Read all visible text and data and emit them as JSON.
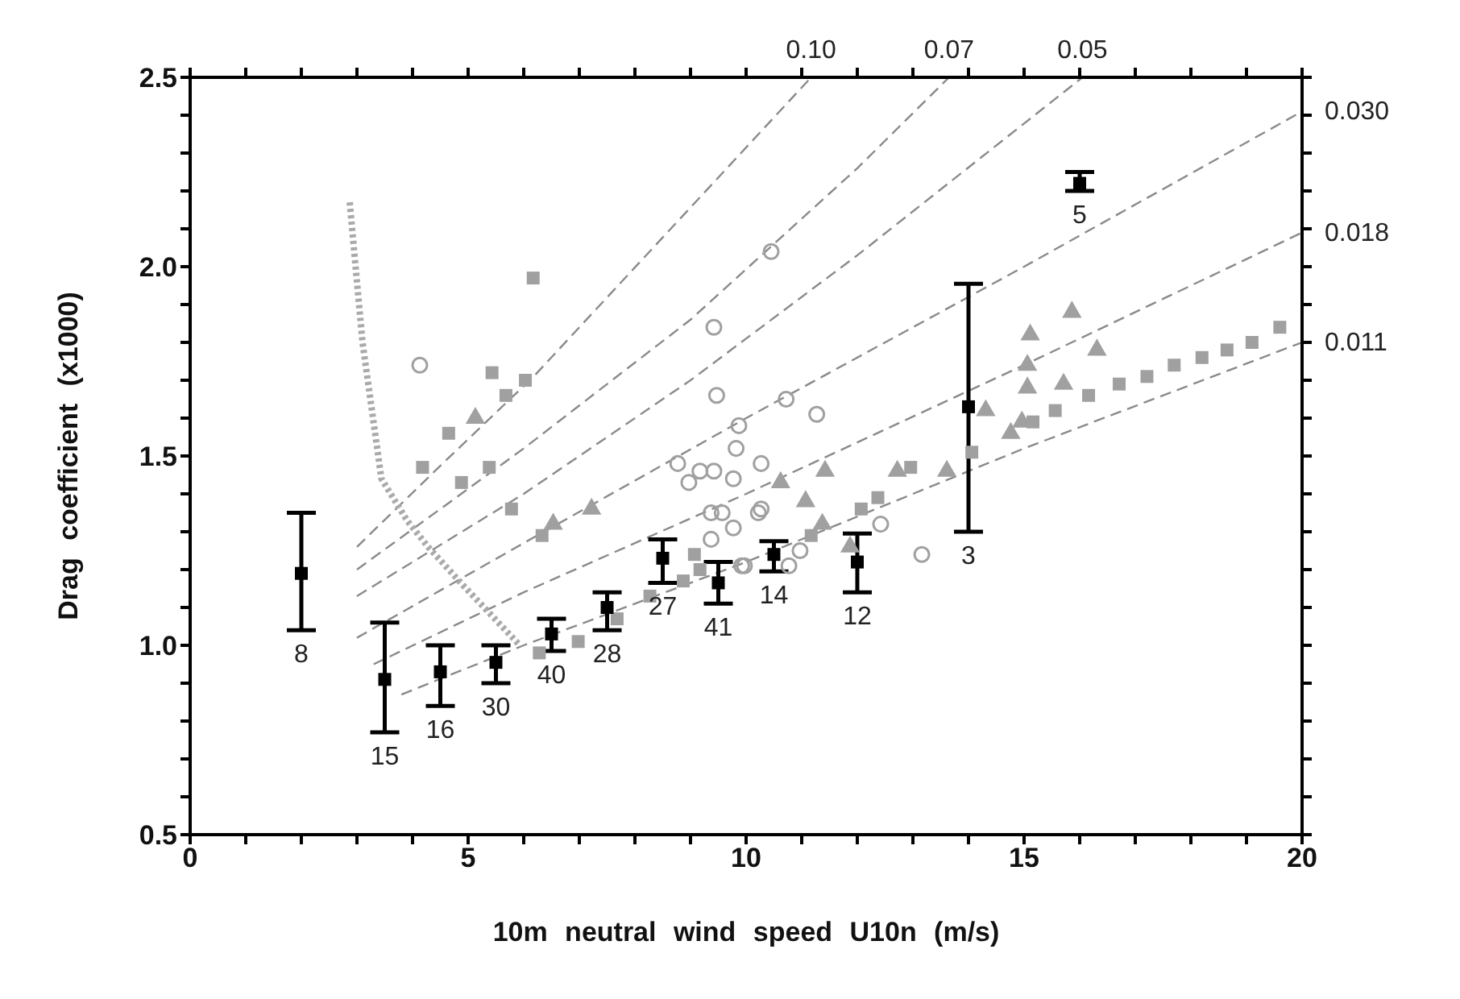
{
  "chart_data": {
    "type": "scatter",
    "xlabel": "10m neutral wind speed U10n (m/s)",
    "ylabel": "Drag coefficient (x1000)",
    "xlim": [
      0,
      20
    ],
    "xticks": [
      0,
      {
        "value": 1,
        "label": null
      },
      {
        "value": 2,
        "label": null
      },
      {
        "value": 3,
        "label": null
      },
      {
        "value": 4,
        "label": null
      },
      5,
      {
        "value": 6,
        "label": null
      },
      {
        "value": 7,
        "label": null
      },
      {
        "value": 8,
        "label": null
      },
      {
        "value": 9,
        "label": null
      },
      10,
      {
        "value": 11,
        "label": null
      },
      {
        "value": 12,
        "label": null
      },
      {
        "value": 13,
        "label": null
      },
      {
        "value": 14,
        "label": null
      },
      15,
      {
        "value": 16,
        "label": null
      },
      {
        "value": 17,
        "label": null
      },
      {
        "value": 18,
        "label": null
      },
      {
        "value": 19,
        "label": null
      },
      20
    ],
    "ylim": [
      0.5,
      2.5
    ],
    "yticks": [
      0.5,
      {
        "value": 0.6,
        "label": null
      },
      {
        "value": 0.7,
        "label": null
      },
      {
        "value": 0.8,
        "label": null
      },
      {
        "value": 0.9,
        "label": null
      },
      {
        "value": 1,
        "label": "1.0"
      },
      {
        "value": 1.1,
        "label": null
      },
      {
        "value": 1.2,
        "label": null
      },
      {
        "value": 1.3,
        "label": null
      },
      {
        "value": 1.4,
        "label": null
      },
      1.5,
      {
        "value": 1.6,
        "label": null
      },
      {
        "value": 1.7,
        "label": null
      },
      {
        "value": 1.8,
        "label": null
      },
      {
        "value": 1.9,
        "label": null
      },
      {
        "value": 2,
        "label": "2.0"
      },
      {
        "value": 2.1,
        "label": null
      },
      {
        "value": 2.2,
        "label": null
      },
      {
        "value": 2.3,
        "label": null
      },
      {
        "value": 2.4,
        "label": null
      },
      2.5
    ],
    "series": [
      {
        "name": "0.10",
        "type": "line",
        "line_style": "dashed",
        "marker": "none",
        "color": "#8a8a8a",
        "x": [
          3,
          4.47,
          6.18,
          8.77,
          11.17
        ],
        "values": [
          1.26,
          1.47,
          1.71,
          2.12,
          2.5
        ]
      },
      {
        "name": "0.07",
        "type": "line",
        "line_style": "dashed",
        "marker": "none",
        "color": "#8a8a8a",
        "x": [
          3,
          6,
          9,
          12,
          13.65
        ],
        "values": [
          1.2,
          1.52,
          1.86,
          2.26,
          2.5
        ]
      },
      {
        "name": "0.05",
        "type": "line",
        "line_style": "dashed",
        "marker": "none",
        "color": "#8a8a8a",
        "x": [
          3,
          6,
          9,
          12,
          16.05
        ],
        "values": [
          1.13,
          1.4,
          1.7,
          2.03,
          2.5
        ]
      },
      {
        "name": "0.030",
        "type": "line",
        "line_style": "dashed",
        "marker": "none",
        "color": "#8a8a8a",
        "x": [
          3,
          6,
          10,
          15,
          20
        ],
        "values": [
          1.02,
          1.27,
          1.6,
          2.0,
          2.41
        ]
      },
      {
        "name": "0.018",
        "type": "line",
        "line_style": "dashed",
        "marker": "none",
        "color": "#8a8a8a",
        "x": [
          3.3,
          6,
          10,
          15,
          20
        ],
        "values": [
          0.95,
          1.14,
          1.4,
          1.74,
          2.09
        ]
      },
      {
        "name": "0.011",
        "type": "line",
        "line_style": "dashed",
        "marker": "none",
        "color": "#8a8a8a",
        "x": [
          3.8,
          6,
          10,
          15,
          20
        ],
        "values": [
          0.87,
          1.0,
          1.22,
          1.52,
          1.8
        ]
      },
      {
        "type": "line",
        "line_style": "dotted",
        "marker": "none",
        "color": "#aaaaaa",
        "x": [
          2.87,
          3.1,
          3.44,
          3.9,
          4.28,
          4.9,
          5.48,
          5.93
        ],
        "values": [
          2.17,
          1.8,
          1.44,
          1.33,
          1.26,
          1.16,
          1.07,
          1.0
        ]
      },
      {
        "marker": "square",
        "color": "#a0a0a0",
        "x": [
          6.17,
          5.43,
          6.03,
          5.68,
          4.65,
          4.18,
          4.88,
          5.38,
          5.78,
          6.33,
          9.07,
          6.28,
          6.98,
          7.68,
          8.27,
          8.87,
          9.17,
          12.37,
          12.07,
          11.17,
          12.96,
          14.06,
          15.16,
          15.56,
          16.16,
          16.71,
          17.21,
          17.7,
          18.2,
          18.65,
          19.1,
          19.6
        ],
        "values": [
          1.97,
          1.72,
          1.7,
          1.66,
          1.56,
          1.47,
          1.43,
          1.47,
          1.36,
          1.29,
          1.24,
          0.98,
          1.01,
          1.07,
          1.13,
          1.17,
          1.2,
          1.39,
          1.36,
          1.29,
          1.47,
          1.51,
          1.59,
          1.62,
          1.66,
          1.69,
          1.71,
          1.74,
          1.76,
          1.78,
          1.8,
          1.84
        ]
      },
      {
        "marker": "circle",
        "color": "#a0a0a0",
        "x": [
          4.13,
          10.45,
          9.42,
          9.47,
          10.72,
          9.87,
          9.82,
          9.42,
          10.27,
          8.97,
          8.77,
          11.27,
          9.37,
          9.77,
          10.22,
          9.37,
          9.97,
          10.77,
          9.77,
          9.17,
          13.16,
          12.42,
          10.97,
          9.57,
          9.92,
          10.27
        ],
        "values": [
          1.74,
          2.04,
          1.84,
          1.66,
          1.65,
          1.58,
          1.52,
          1.46,
          1.48,
          1.43,
          1.48,
          1.61,
          1.35,
          1.31,
          1.35,
          1.28,
          1.21,
          1.21,
          1.44,
          1.46,
          1.24,
          1.32,
          1.25,
          1.35,
          1.21,
          1.36
        ]
      },
      {
        "marker": "triangle",
        "color": "#a0a0a0",
        "x": [
          5.13,
          11.42,
          10.62,
          12.72,
          13.61,
          14.31,
          15.11,
          15.86,
          16.31,
          15.06,
          15.06,
          15.71,
          14.96,
          14.76,
          6.53,
          7.22,
          11.07,
          11.87,
          11.37
        ],
        "values": [
          1.6,
          1.46,
          1.43,
          1.46,
          1.46,
          1.62,
          1.82,
          1.88,
          1.78,
          1.74,
          1.68,
          1.69,
          1.59,
          1.56,
          1.32,
          1.36,
          1.38,
          1.26,
          1.32
        ]
      },
      {
        "marker": "square",
        "color": "#000000",
        "x": [
          2,
          3.5,
          4.5,
          5.5,
          6.5,
          7.5,
          8.5,
          9.5,
          10.5,
          12,
          14,
          16
        ],
        "values": [
          1.19,
          0.91,
          0.93,
          0.955,
          1.03,
          1.1,
          1.23,
          1.165,
          1.24,
          1.22,
          1.63,
          2.22
        ],
        "errors": [
          [
            1.04,
            1.35
          ],
          [
            0.77,
            1.06
          ],
          [
            0.84,
            1.0
          ],
          [
            0.9,
            1.0
          ],
          [
            0.985,
            1.07
          ],
          [
            1.04,
            1.14
          ],
          [
            1.165,
            1.28
          ],
          [
            1.11,
            1.22
          ],
          [
            1.195,
            1.275
          ],
          [
            1.14,
            1.295
          ],
          [
            1.3,
            1.955
          ],
          [
            2.2,
            2.25
          ]
        ]
      }
    ],
    "annotations": [
      {
        "text": "8",
        "x": 2,
        "y": 1.04
      },
      {
        "text": "15",
        "x": 3.5,
        "y": 0.77
      },
      {
        "text": "16",
        "x": 4.5,
        "y": 0.84
      },
      {
        "text": "30",
        "x": 5.5,
        "y": 0.9
      },
      {
        "text": "40",
        "x": 6.5,
        "y": 0.985
      },
      {
        "text": "28",
        "x": 7.5,
        "y": 1.04
      },
      {
        "text": "27",
        "x": 8.5,
        "y": 1.165
      },
      {
        "text": "41",
        "x": 9.5,
        "y": 1.11
      },
      {
        "text": "14",
        "x": 10.5,
        "y": 1.195
      },
      {
        "text": "12",
        "x": 12,
        "y": 1.14
      },
      {
        "text": "3",
        "x": 14,
        "y": 1.3
      },
      {
        "text": "5",
        "x": 16,
        "y": 2.2
      }
    ]
  }
}
